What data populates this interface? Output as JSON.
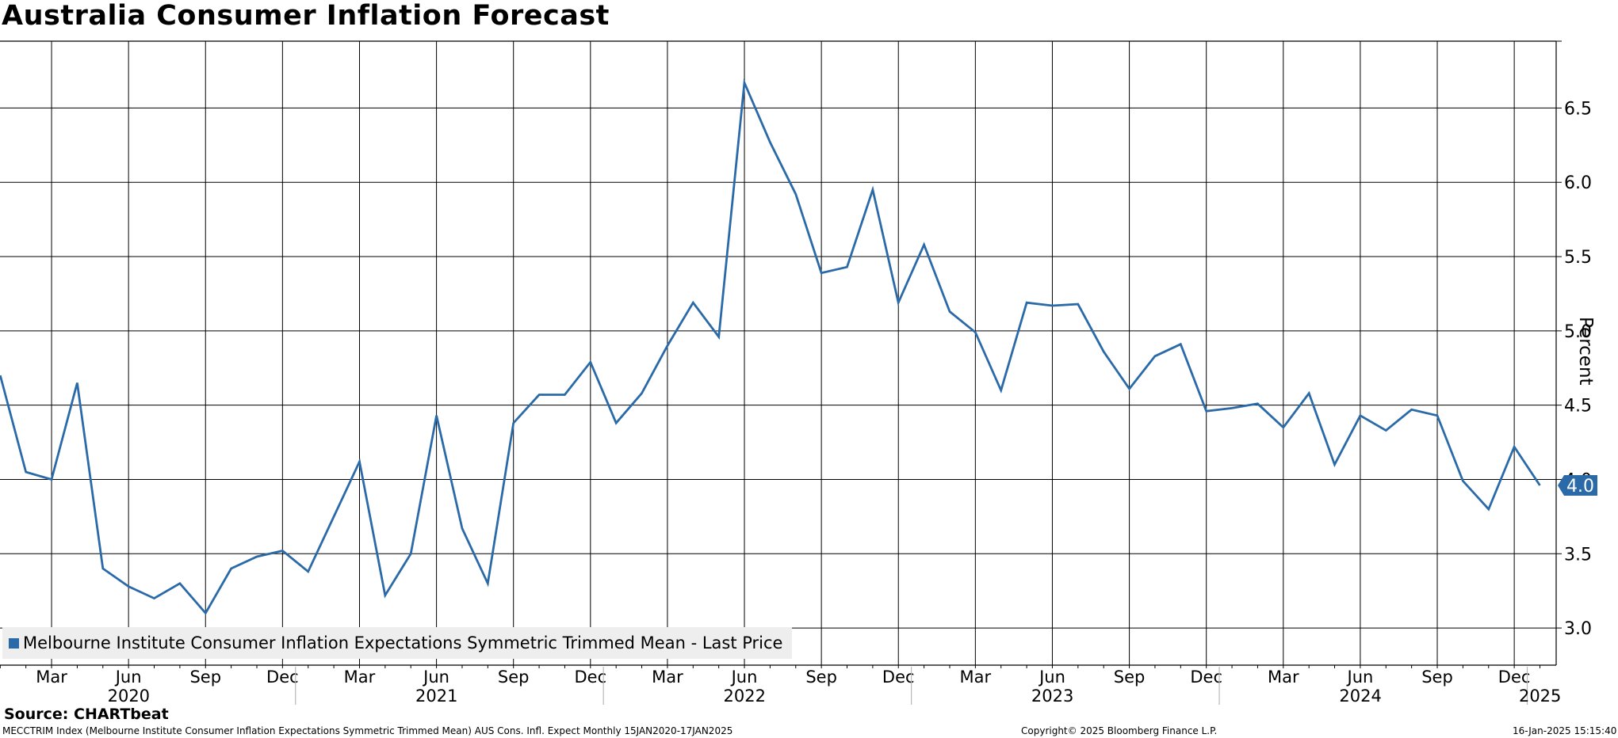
{
  "title": "Australia Consumer Inflation Forecast",
  "chart_data": {
    "type": "line",
    "title": "Australia Consumer Inflation Forecast",
    "ylabel": "Percent",
    "ylim": [
      2.75,
      6.95
    ],
    "yticks": [
      3.0,
      3.5,
      4.0,
      4.5,
      5.0,
      5.5,
      6.0,
      6.5
    ],
    "ytick_labels": [
      "3.0",
      "3.5",
      "4.0",
      "4.5",
      "5.0",
      "5.5",
      "6.0",
      "6.5"
    ],
    "x_start_month": "Jan 2020",
    "month_labels": [
      {
        "index": 2,
        "label": "Mar"
      },
      {
        "index": 5,
        "label": "Jun"
      },
      {
        "index": 8,
        "label": "Sep"
      },
      {
        "index": 11,
        "label": "Dec"
      },
      {
        "index": 14,
        "label": "Mar"
      },
      {
        "index": 17,
        "label": "Jun"
      },
      {
        "index": 20,
        "label": "Sep"
      },
      {
        "index": 23,
        "label": "Dec"
      },
      {
        "index": 26,
        "label": "Mar"
      },
      {
        "index": 29,
        "label": "Jun"
      },
      {
        "index": 32,
        "label": "Sep"
      },
      {
        "index": 35,
        "label": "Dec"
      },
      {
        "index": 38,
        "label": "Mar"
      },
      {
        "index": 41,
        "label": "Jun"
      },
      {
        "index": 44,
        "label": "Sep"
      },
      {
        "index": 47,
        "label": "Dec"
      },
      {
        "index": 50,
        "label": "Mar"
      },
      {
        "index": 53,
        "label": "Jun"
      },
      {
        "index": 56,
        "label": "Sep"
      },
      {
        "index": 59,
        "label": "Dec"
      }
    ],
    "year_labels": [
      {
        "index": 5.5,
        "label": "2020"
      },
      {
        "index": 17.5,
        "label": "2021"
      },
      {
        "index": 29.5,
        "label": "2022"
      },
      {
        "index": 41.5,
        "label": "2023"
      },
      {
        "index": 53.5,
        "label": "2024"
      },
      {
        "index": 60.5,
        "label": "2025"
      }
    ],
    "year_separators": [
      12,
      24,
      36,
      48,
      60
    ],
    "series": [
      {
        "name": "Melbourne Institute Consumer Inflation Expectations Symmetric Trimmed Mean - Last Price",
        "color": "#2b6aa8",
        "values": [
          4.7,
          4.05,
          4.0,
          4.65,
          3.4,
          3.28,
          3.2,
          3.3,
          3.1,
          3.4,
          3.48,
          3.52,
          3.38,
          3.75,
          4.12,
          3.22,
          3.5,
          4.43,
          3.67,
          3.3,
          4.38,
          4.57,
          4.57,
          4.79,
          4.38,
          4.58,
          4.9,
          5.19,
          4.96,
          6.67,
          6.27,
          5.92,
          5.39,
          5.43,
          5.95,
          5.19,
          5.58,
          5.13,
          4.99,
          4.6,
          5.19,
          5.17,
          5.18,
          4.86,
          4.61,
          4.83,
          4.91,
          4.46,
          4.48,
          4.51,
          4.35,
          4.58,
          4.1,
          4.43,
          4.33,
          4.47,
          4.43,
          3.99,
          3.8,
          4.22,
          3.96
        ]
      }
    ],
    "last_value_label": "4.0",
    "legend": "Melbourne Institute Consumer Inflation Expectations Symmetric Trimmed Mean - Last Price"
  },
  "source": "Source: CHARTbeat",
  "footer_left": "MECCTRIM Index (Melbourne Institute Consumer Inflation Expectations Symmetric Trimmed Mean) AUS Cons. Infl. Expect  Monthly 15JAN2020-17JAN2025",
  "footer_mid": "Copyright© 2025 Bloomberg Finance L.P.",
  "footer_right": "16-Jan-2025 15:15:40"
}
